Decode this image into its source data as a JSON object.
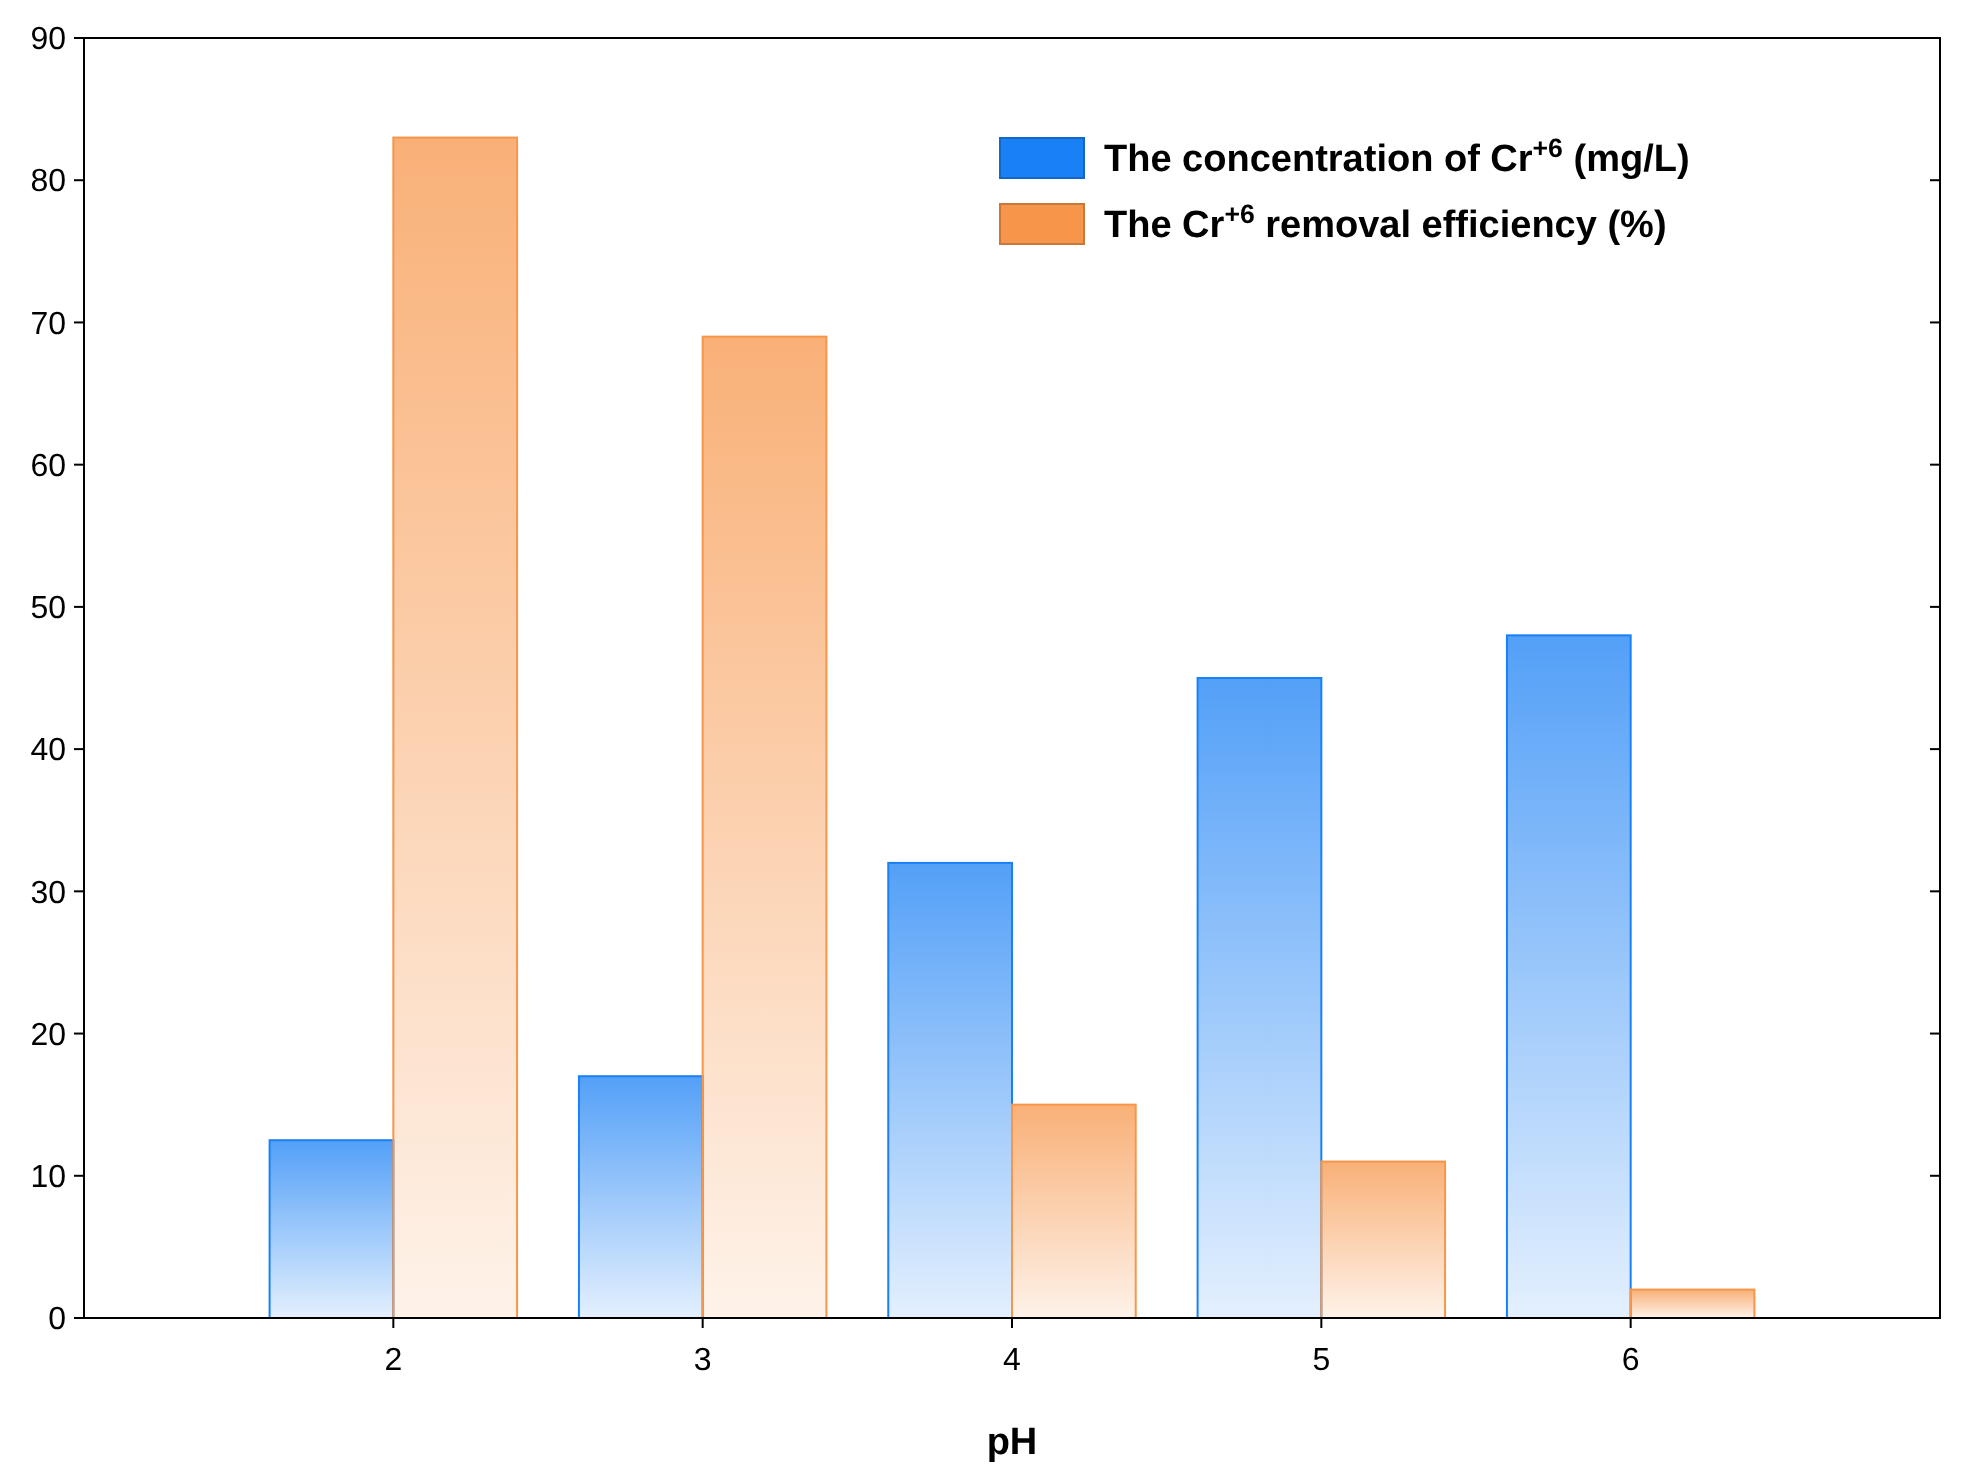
{
  "chart_data": {
    "type": "bar",
    "xlabel": "pH",
    "categories": [
      "2",
      "3",
      "4",
      "5",
      "6"
    ],
    "series": [
      {
        "name": "The concentration of Cr$^{+6}$ (mg/L)",
        "color": "#1a80f5",
        "values": [
          12.5,
          17,
          32,
          45,
          48
        ]
      },
      {
        "name": "The Cr$^{+6}$ removal efficiency (%)",
        "color": "#f7964a",
        "values": [
          83,
          69,
          15,
          11,
          2
        ]
      }
    ],
    "ylim": [
      0,
      90
    ],
    "yticks": [
      0,
      10,
      20,
      30,
      40,
      50,
      60,
      70,
      80,
      90
    ],
    "grid": false,
    "legend": "top right"
  }
}
